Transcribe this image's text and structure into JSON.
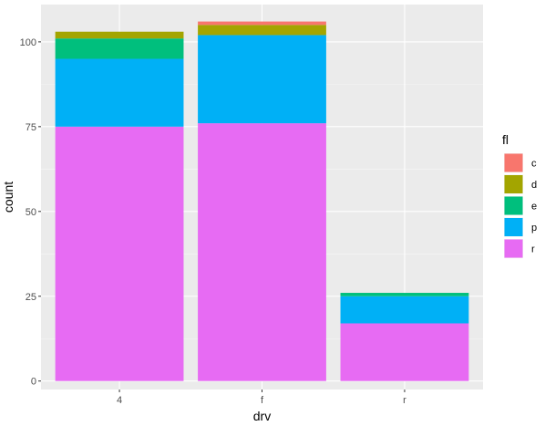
{
  "chart_data": {
    "type": "bar",
    "stacked": true,
    "title": "",
    "xlabel": "drv",
    "ylabel": "count",
    "categories": [
      "4",
      "f",
      "r"
    ],
    "ylim": [
      -2.5,
      111
    ],
    "yticks": [
      0,
      25,
      50,
      75,
      100
    ],
    "grid": true,
    "background": "#EBEBEB",
    "legend": {
      "title": "fl",
      "position": "right"
    },
    "series": [
      {
        "name": "c",
        "color": "#F8766D",
        "values": [
          0,
          1,
          0
        ]
      },
      {
        "name": "d",
        "color": "#A3A500",
        "values": [
          2,
          3,
          0
        ]
      },
      {
        "name": "e",
        "color": "#00BF7D",
        "values": [
          6,
          0,
          1
        ]
      },
      {
        "name": "p",
        "color": "#00B0F6",
        "values": [
          20,
          26,
          8
        ]
      },
      {
        "name": "r",
        "color": "#E76BF3",
        "values": [
          75,
          76,
          17
        ]
      }
    ]
  }
}
